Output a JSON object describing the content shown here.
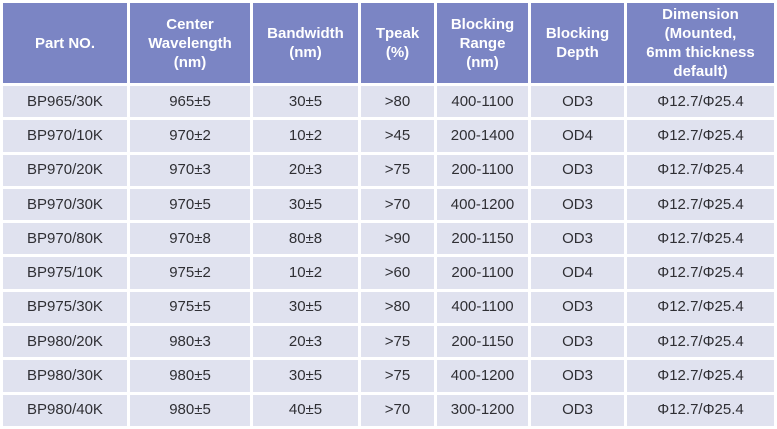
{
  "colors": {
    "header_bg": "#7b85c4",
    "header_text": "#ffffff",
    "row_bg": "#e0e2ef",
    "cell_text": "#2f2f34",
    "grid": "#ffffff"
  },
  "table": {
    "columns": [
      {
        "id": "part-no",
        "label": [
          "Part NO."
        ]
      },
      {
        "id": "center-wavelength",
        "label": [
          "Center",
          "Wavelength",
          "(nm)"
        ]
      },
      {
        "id": "bandwidth",
        "label": [
          "Bandwidth",
          "(nm)"
        ]
      },
      {
        "id": "tpeak",
        "label": [
          "Tpeak",
          "(%)"
        ]
      },
      {
        "id": "blocking-range",
        "label": [
          "Blocking",
          "Range",
          "(nm)"
        ]
      },
      {
        "id": "blocking-depth",
        "label": [
          "Blocking",
          "Depth"
        ]
      },
      {
        "id": "dimension",
        "label": [
          "Dimension",
          "(Mounted,",
          "6mm thickness",
          "default)"
        ]
      }
    ],
    "rows": [
      [
        "BP965/30K",
        "965±5",
        "30±5",
        ">80",
        "400-1100",
        "OD3",
        "Φ12.7/Φ25.4"
      ],
      [
        "BP970/10K",
        "970±2",
        "10±2",
        ">45",
        "200-1400",
        "OD4",
        "Φ12.7/Φ25.4"
      ],
      [
        "BP970/20K",
        "970±3",
        "20±3",
        ">75",
        "200-1100",
        "OD3",
        "Φ12.7/Φ25.4"
      ],
      [
        "BP970/30K",
        "970±5",
        "30±5",
        ">70",
        "400-1200",
        "OD3",
        "Φ12.7/Φ25.4"
      ],
      [
        "BP970/80K",
        "970±8",
        "80±8",
        ">90",
        "200-1150",
        "OD3",
        "Φ12.7/Φ25.4"
      ],
      [
        "BP975/10K",
        "975±2",
        "10±2",
        ">60",
        "200-1100",
        "OD4",
        "Φ12.7/Φ25.4"
      ],
      [
        "BP975/30K",
        "975±5",
        "30±5",
        ">80",
        "400-1100",
        "OD3",
        "Φ12.7/Φ25.4"
      ],
      [
        "BP980/20K",
        "980±3",
        "20±3",
        ">75",
        "200-1150",
        "OD3",
        "Φ12.7/Φ25.4"
      ],
      [
        "BP980/30K",
        "980±5",
        "30±5",
        ">75",
        "400-1200",
        "OD3",
        "Φ12.7/Φ25.4"
      ],
      [
        "BP980/40K",
        "980±5",
        "40±5",
        ">70",
        "300-1200",
        "OD3",
        "Φ12.7/Φ25.4"
      ]
    ]
  }
}
